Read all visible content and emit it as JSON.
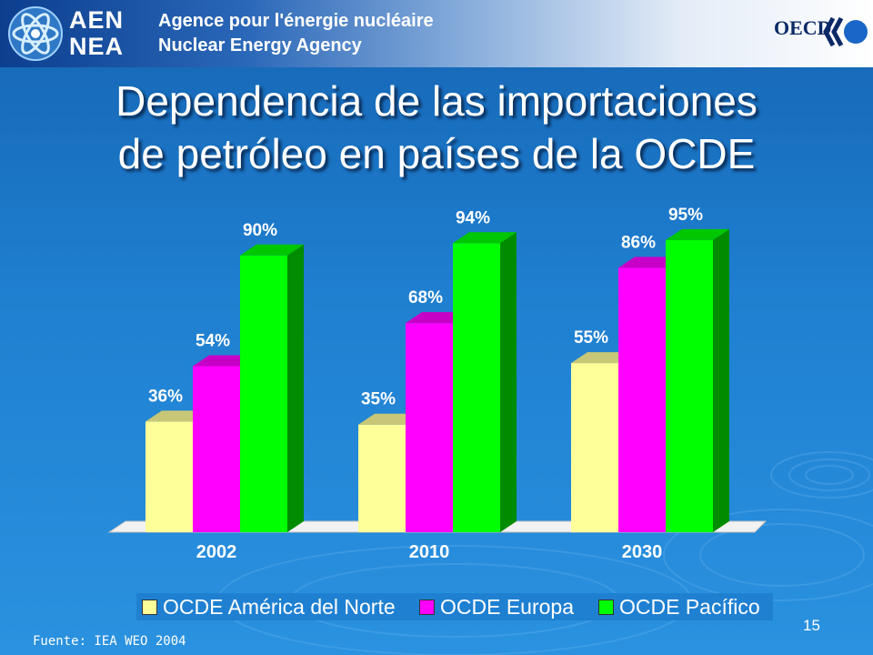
{
  "header": {
    "logo_line1": "AEN",
    "logo_line2": "NEA",
    "agency_fr": "Agence pour l'énergie nucléaire",
    "agency_en": "Nuclear Energy Agency",
    "oecd_label": "OECD",
    "emblem_icon": "atom-swirl-icon",
    "oecd_icon": "oecd-logo-icon"
  },
  "title": {
    "line1": "Dependencia de las importaciones",
    "line2": "de petróleo en países de la OCDE"
  },
  "chart_data": {
    "type": "bar",
    "categories": [
      "2002",
      "2010",
      "2030"
    ],
    "series": [
      {
        "name": "OCDE América del Norte",
        "values": [
          36,
          35,
          55
        ],
        "labels": [
          "36%",
          "35%",
          "55%"
        ],
        "color": "#ffff99"
      },
      {
        "name": "OCDE Europa",
        "values": [
          54,
          68,
          86
        ],
        "labels": [
          "54%",
          "68%",
          "86%"
        ],
        "color": "#ff00ff"
      },
      {
        "name": "OCDE Pacífico",
        "values": [
          90,
          94,
          95
        ],
        "labels": [
          "90%",
          "94%",
          "95%"
        ],
        "color": "#00ff00"
      }
    ],
    "ylim": [
      0,
      100
    ],
    "grid": false,
    "legend_position": "bottom",
    "three_d": true
  },
  "footer": {
    "source": "Fuente: IEA WEO 2004",
    "page_number": "15"
  }
}
